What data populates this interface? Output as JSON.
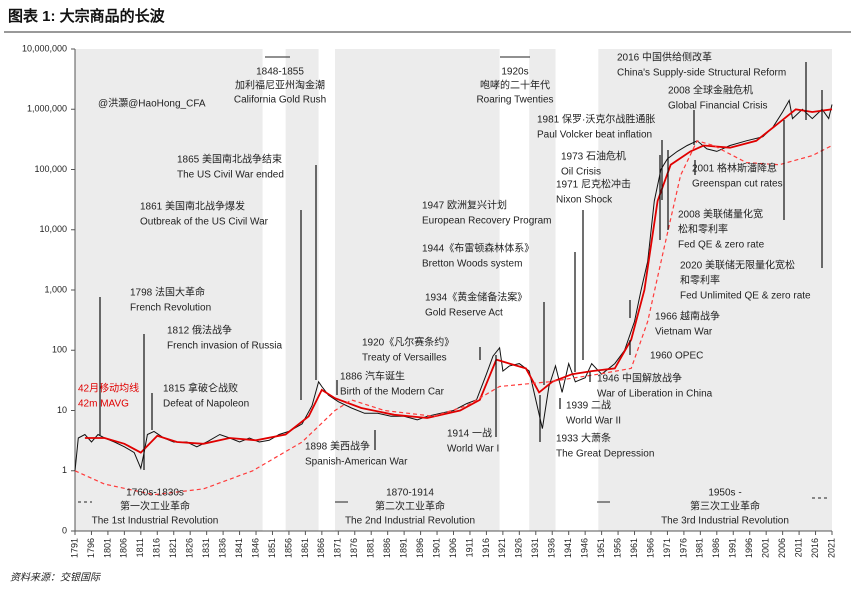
{
  "title": "图表 1: 大宗商品的长波",
  "source": "资料来源：交银国际",
  "chart_data": {
    "type": "line",
    "log_scale": true,
    "xlim": [
      1791,
      2021
    ],
    "xticks": [
      1791,
      1796,
      1801,
      1806,
      1811,
      1816,
      1821,
      1826,
      1831,
      1836,
      1841,
      1846,
      1851,
      1856,
      1861,
      1866,
      1871,
      1876,
      1881,
      1886,
      1891,
      1896,
      1901,
      1906,
      1911,
      1916,
      1921,
      1926,
      1931,
      1936,
      1941,
      1946,
      1951,
      1956,
      1961,
      1966,
      1971,
      1976,
      1981,
      1986,
      1991,
      1996,
      2001,
      2006,
      2011,
      2016,
      2021
    ],
    "ylim": [
      0.1,
      10000000
    ],
    "yticks": [
      {
        "value": 0.1,
        "label": "0"
      },
      1,
      10,
      100,
      {
        "value": 1000,
        "label": "1,000"
      },
      {
        "value": 10000,
        "label": "10,000"
      },
      {
        "value": 100000,
        "label": "100,000"
      },
      {
        "value": 1000000,
        "label": "1,000,000"
      },
      {
        "value": 10000000,
        "label": "10,000,000"
      }
    ],
    "shaded_periods": [
      [
        1791,
        1848
      ],
      [
        1855,
        1865
      ],
      [
        1870,
        1920
      ],
      [
        1929,
        1937
      ],
      [
        1950,
        2021
      ]
    ],
    "series": [
      {
        "color": "#111111",
        "style": "solid",
        "x": [
          1791,
          1792,
          1794,
          1796,
          1798,
          1800,
          1803,
          1806,
          1809,
          1811,
          1812,
          1813,
          1815,
          1818,
          1821,
          1825,
          1828,
          1831,
          1835,
          1838,
          1841,
          1844,
          1847,
          1850,
          1853,
          1856,
          1860,
          1863,
          1865,
          1866,
          1868,
          1871,
          1875,
          1879,
          1883,
          1887,
          1891,
          1895,
          1898,
          1902,
          1906,
          1910,
          1913,
          1916,
          1918,
          1920,
          1921,
          1923,
          1926,
          1929,
          1931,
          1933,
          1935,
          1937,
          1939,
          1941,
          1943,
          1946,
          1948,
          1951,
          1955,
          1958,
          1961,
          1963,
          1965,
          1967,
          1969,
          1971,
          1974,
          1977,
          1980,
          1983,
          1986,
          1990,
          1995,
          2000,
          2003,
          2006,
          2008,
          2009,
          2012,
          2015,
          2018,
          2020,
          2021
        ],
        "values": [
          1,
          3.5,
          4,
          3,
          4,
          3.5,
          3,
          2.5,
          2,
          1.1,
          2,
          4,
          4.5,
          3.5,
          3,
          3,
          2.5,
          3,
          4,
          3.5,
          3,
          3.5,
          3,
          3.2,
          4,
          4.5,
          6,
          12,
          30,
          25,
          18,
          14,
          11,
          9,
          9,
          8,
          8,
          7,
          8,
          9,
          10,
          13,
          15,
          40,
          80,
          110,
          45,
          55,
          60,
          45,
          15,
          5,
          25,
          55,
          20,
          60,
          30,
          35,
          60,
          40,
          60,
          100,
          300,
          1000,
          3000,
          30000,
          100000,
          150000,
          200000,
          250000,
          300000,
          220000,
          200000,
          250000,
          300000,
          350000,
          500000,
          900000,
          1400000,
          700000,
          1000000,
          700000,
          1000000,
          700000,
          1200000
        ]
      },
      {
        "name": "42月移动均线",
        "name2": "42m MAVG",
        "color": "#e00000",
        "style": "solid",
        "x": [
          1794,
          1800,
          1806,
          1811,
          1816,
          1822,
          1830,
          1838,
          1846,
          1855,
          1862,
          1866,
          1870,
          1878,
          1888,
          1898,
          1908,
          1914,
          1919,
          1923,
          1928,
          1932,
          1936,
          1942,
          1948,
          1955,
          1960,
          1964,
          1968,
          1972,
          1978,
          1982,
          1990,
          1998,
          2005,
          2010,
          2015,
          2021
        ],
        "values": [
          3.5,
          3.5,
          2.8,
          2,
          3.8,
          3,
          2.8,
          3.5,
          3.2,
          4,
          8,
          22,
          16,
          11,
          8.5,
          7.5,
          10,
          15,
          70,
          60,
          50,
          20,
          30,
          40,
          45,
          50,
          150,
          1000,
          30000,
          120000,
          200000,
          250000,
          230000,
          300000,
          600000,
          1000000,
          900000,
          1000000
        ]
      },
      {
        "color": "#ff3b3b",
        "style": "dashed",
        "x": [
          1791,
          1800,
          1815,
          1830,
          1845,
          1860,
          1870,
          1875,
          1885,
          1900,
          1910,
          1920,
          1935,
          1950,
          1960,
          1965,
          1970,
          1975,
          1980,
          1985,
          1995,
          2005,
          2015,
          2021
        ],
        "values": [
          1,
          0.6,
          0.4,
          0.5,
          1,
          3,
          10,
          15,
          10,
          8,
          12,
          25,
          30,
          40,
          50,
          300,
          5000,
          80000,
          300000,
          250000,
          130000,
          120000,
          170000,
          250000
        ]
      }
    ],
    "periods": [
      {
        "lines": [
          "1848-1855",
          "加利福尼亚州淘金潮",
          "California Gold Rush"
        ]
      },
      {
        "lines": [
          "1920s",
          "咆哮的二十年代",
          "Roaring Twenties"
        ]
      },
      {
        "lines": [
          "1760s-1830s",
          "第一次工业革命",
          "The 1st Industrial Revolution"
        ]
      },
      {
        "lines": [
          "1870-1914",
          "第二次工业革命",
          "The 2nd Industrial Revolution"
        ]
      },
      {
        "lines": [
          "1950s -",
          "第三次工业革命",
          "The 3rd Industrial Revolution"
        ]
      }
    ],
    "annotations": [
      {
        "lines": [
          "@洪灝@HaoHong_CFA"
        ]
      },
      {
        "lines": [
          "1865 美国南北战争结束",
          "The US Civil War ended"
        ]
      },
      {
        "lines": [
          "1861 美国南北战争爆发",
          "Outbreak of the US Civil War"
        ]
      },
      {
        "lines": [
          "1798 法国大革命",
          "French Revolution"
        ]
      },
      {
        "lines": [
          "1812 俄法战争",
          "French invasion of Russia"
        ]
      },
      {
        "lines": [
          "1815 拿破仑战败",
          "Defeat of Napoleon"
        ]
      },
      {
        "lines": [
          "1886 汽车诞生",
          "Birth of the Modern Car"
        ]
      },
      {
        "lines": [
          "1898 美西战争",
          "Spanish-American War"
        ]
      },
      {
        "lines": [
          "1920《凡尔赛条约》",
          "Treaty of Versailles"
        ]
      },
      {
        "lines": [
          "1914 一战",
          "World War I"
        ]
      },
      {
        "lines": [
          "1934《黄金储备法案》",
          "Gold Reserve Act"
        ]
      },
      {
        "lines": [
          "1944《布雷顿森林体系》",
          "Bretton Woods system"
        ]
      },
      {
        "lines": [
          "1947 欧洲复兴计划",
          "European Recovery Program"
        ]
      },
      {
        "lines": [
          "1933 大萧条",
          "The Great Depression"
        ]
      },
      {
        "lines": [
          "1939 二战",
          "World War II"
        ]
      },
      {
        "lines": [
          "1946 中国解放战争",
          "War of Liberation in China"
        ]
      },
      {
        "lines": [
          "1960 OPEC"
        ]
      },
      {
        "lines": [
          "1966 越南战争",
          "Vietnam War"
        ]
      },
      {
        "lines": [
          "1971 尼克松冲击",
          "Nixon Shock"
        ]
      },
      {
        "lines": [
          "1973 石油危机",
          "Oil Crisis"
        ]
      },
      {
        "lines": [
          "1981 保罗·沃克尔战胜通胀",
          "Paul Volcker beat inflation"
        ]
      },
      {
        "lines": [
          "2001 格林斯潘降息",
          "Greenspan cut rates"
        ]
      },
      {
        "lines": [
          "2008 美联储量化宽",
          "松和零利率",
          "Fed QE & zero rate"
        ]
      },
      {
        "lines": [
          "2020 美联储无限量化宽松",
          "和零利率",
          "Fed  Unlimited QE & zero rate"
        ]
      },
      {
        "lines": [
          "2008 全球金融危机",
          "Global Financial Crisis"
        ]
      },
      {
        "lines": [
          "2016 中国供给侧改革",
          "China's Supply-side Structural Reform"
        ]
      }
    ]
  }
}
